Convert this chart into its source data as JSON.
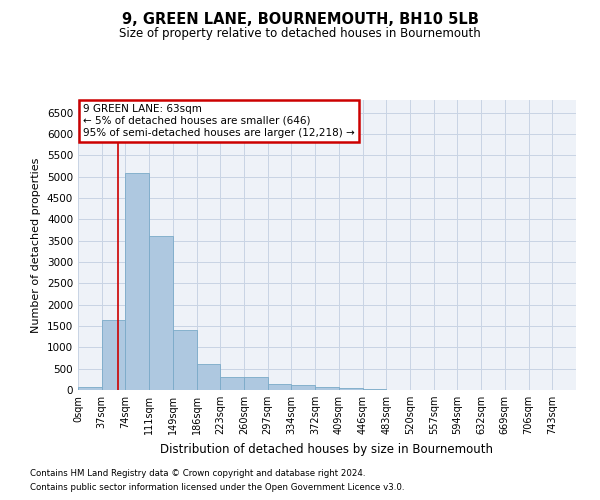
{
  "title": "9, GREEN LANE, BOURNEMOUTH, BH10 5LB",
  "subtitle": "Size of property relative to detached houses in Bournemouth",
  "xlabel": "Distribution of detached houses by size in Bournemouth",
  "ylabel": "Number of detached properties",
  "footnote1": "Contains HM Land Registry data © Crown copyright and database right 2024.",
  "footnote2": "Contains public sector information licensed under the Open Government Licence v3.0.",
  "bar_labels": [
    "0sqm",
    "37sqm",
    "74sqm",
    "111sqm",
    "149sqm",
    "186sqm",
    "223sqm",
    "260sqm",
    "297sqm",
    "334sqm",
    "372sqm",
    "409sqm",
    "446sqm",
    "483sqm",
    "520sqm",
    "557sqm",
    "594sqm",
    "632sqm",
    "669sqm",
    "706sqm",
    "743sqm"
  ],
  "bar_values": [
    70,
    1650,
    5080,
    3620,
    1400,
    620,
    295,
    295,
    150,
    115,
    80,
    55,
    30,
    0,
    0,
    0,
    0,
    0,
    0,
    0,
    0
  ],
  "bar_color": "#aec8e0",
  "bar_edge_color": "#7aaac8",
  "grid_color": "#c8d4e4",
  "bg_color": "#eef2f8",
  "annotation_text": "9 GREEN LANE: 63sqm\n← 5% of detached houses are smaller (646)\n95% of semi-detached houses are larger (12,218) →",
  "annotation_box_color": "#ffffff",
  "annotation_box_edge_color": "#cc0000",
  "red_line_x": 63,
  "ylim": [
    0,
    6800
  ],
  "yticks": [
    0,
    500,
    1000,
    1500,
    2000,
    2500,
    3000,
    3500,
    4000,
    4500,
    5000,
    5500,
    6000,
    6500
  ],
  "bin_width": 37,
  "num_bins": 21
}
